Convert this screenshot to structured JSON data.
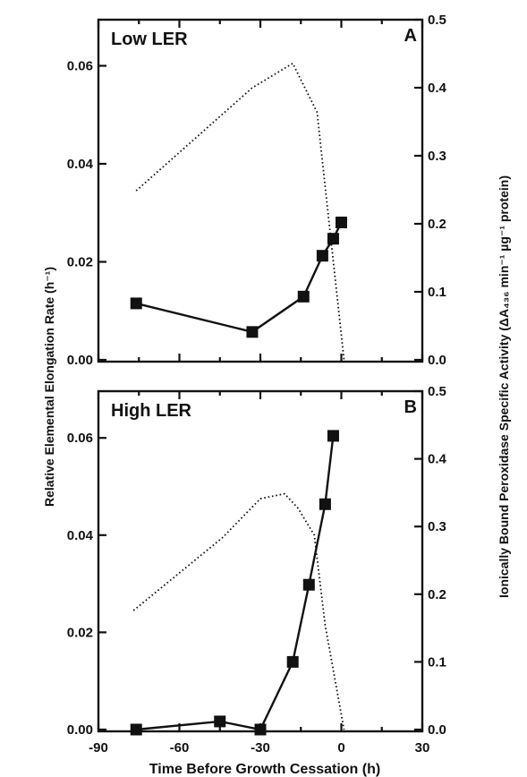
{
  "chart_data": {
    "type": "line",
    "x_label": "Time Before Growth Cessation (h)",
    "y_label_left": "Relative Elemental Elongation Rate (h⁻¹)",
    "y_label_right": "Ionically Bound Peroxidase Specific Activity (ΔA₄₃₆ min⁻¹ µg⁻¹ protein)",
    "xlim": [
      -90,
      30
    ],
    "x_ticks": [
      -90,
      -60,
      -30,
      0,
      30
    ],
    "x_tick_labels": [
      "-90",
      "-60",
      "-30",
      "0",
      "30"
    ],
    "y_left_lim": [
      0,
      0.07
    ],
    "y_left_ticks": [
      0,
      0.02,
      0.04,
      0.06
    ],
    "y_left_tick_labels": [
      "0.00",
      "0.02",
      "0.04",
      "0.06"
    ],
    "y_right_lim": [
      0,
      0.5
    ],
    "y_right_ticks": [
      0,
      0.1,
      0.2,
      0.3,
      0.4,
      0.5
    ],
    "y_right_tick_labels": [
      "0.0",
      "0.1",
      "0.2",
      "0.3",
      "0.4",
      "0.5"
    ],
    "panels": [
      {
        "title": "Low LER",
        "letter": "A",
        "series": [
          {
            "style": "dotted",
            "axis": "left",
            "x": [
              -76,
              -33,
              -18,
              -9,
              1
            ],
            "y": [
              0.0345,
              0.0555,
              0.0605,
              0.0505,
              0.0
            ]
          },
          {
            "style": "solid-square",
            "axis": "right",
            "x": [
              -76,
              -33,
              -14,
              -7,
              -3,
              0
            ],
            "y": [
              0.083,
              0.041,
              0.093,
              0.153,
              0.178,
              0.202
            ]
          }
        ]
      },
      {
        "title": "High LER",
        "letter": "B",
        "series": [
          {
            "style": "dotted",
            "axis": "left",
            "x": [
              -77,
              -44,
              -30,
              -21,
              -16,
              -10,
              -6,
              1
            ],
            "y": [
              0.0245,
              0.0395,
              0.0475,
              0.0485,
              0.0455,
              0.04,
              0.0215,
              0.0
            ]
          },
          {
            "style": "solid-square",
            "axis": "right",
            "x": [
              -76,
              -45,
              -30,
              -18,
              -12,
              -6,
              -3
            ],
            "y": [
              0.0,
              0.012,
              0.0,
              0.1,
              0.214,
              0.333,
              0.434
            ]
          }
        ]
      }
    ]
  }
}
